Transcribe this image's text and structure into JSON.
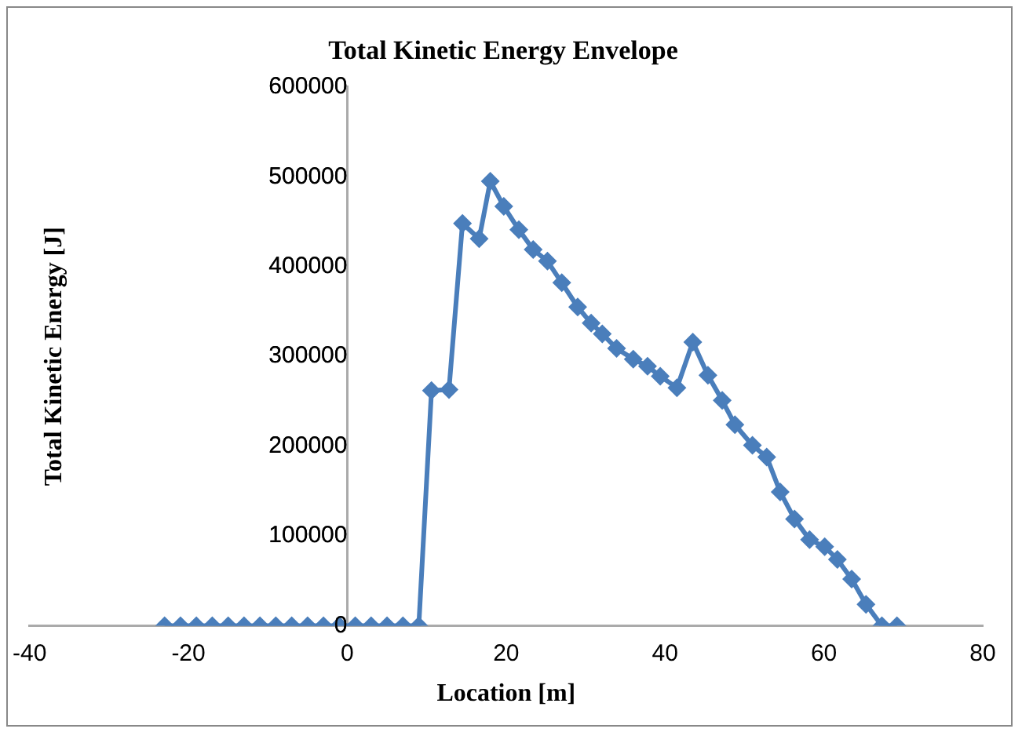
{
  "chart_data": {
    "type": "line",
    "title": "Total Kinetic Energy Envelope",
    "xlabel": "Location [m]",
    "ylabel": "Total Kinetic Energy [J]",
    "xlim": [
      -40,
      80
    ],
    "xticks": [
      -40,
      -20,
      0,
      20,
      40,
      60,
      80
    ],
    "ylim": [
      0,
      600000
    ],
    "yticks": [
      0,
      100000,
      200000,
      300000,
      400000,
      500000,
      600000
    ],
    "grid": false,
    "legend": false,
    "marker": "diamond",
    "line_style": "solid",
    "series": [
      {
        "color": "#4a7ebb",
        "x": [
          -23,
          -21,
          -19,
          -17,
          -15,
          -13,
          -11,
          -9,
          -7,
          -5,
          -3,
          -1,
          1,
          3,
          5,
          7,
          9,
          10.6,
          12.8,
          14.5,
          16.6,
          18,
          19.7,
          21.6,
          23.4,
          25.2,
          27,
          29,
          30.7,
          32.1,
          33.9,
          36,
          37.8,
          39.4,
          41.5,
          43.5,
          45.4,
          47.2,
          48.8,
          51,
          52.8,
          54.5,
          56.3,
          58.2,
          60.1,
          61.7,
          63.5,
          65.3,
          67.3,
          69.2
        ],
        "values": [
          0,
          0,
          0,
          0,
          0,
          0,
          0,
          0,
          0,
          0,
          0,
          0,
          0,
          0,
          0,
          0,
          0,
          262000,
          263000,
          448000,
          431000,
          495000,
          467000,
          441000,
          419000,
          406000,
          382000,
          355000,
          337000,
          325000,
          309000,
          297000,
          289000,
          278000,
          265000,
          316000,
          279000,
          251000,
          224000,
          201000,
          188000,
          149000,
          119000,
          96000,
          88000,
          74000,
          52000,
          24000,
          0,
          0
        ]
      }
    ]
  }
}
